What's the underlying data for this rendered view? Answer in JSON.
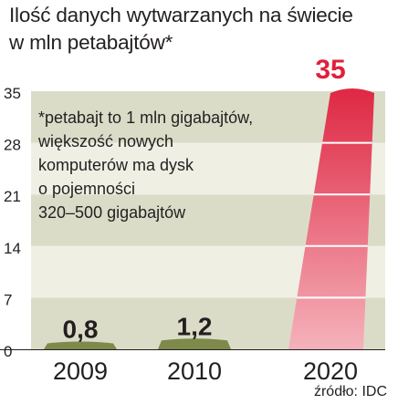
{
  "title_line1": "Ilość danych wytwarzanych na świecie",
  "title_line2": "w mln petabajtów*",
  "source": "źródło: IDC",
  "footnote": [
    "*petabajt to 1 mln gigabajtów,",
    "większość nowych",
    "komputerów ma dysk",
    " o pojemności",
    "320–500 gigabajtów"
  ],
  "colors": {
    "grid_band_light": "#efefe4",
    "grid_band_dark": "#dbdcc8",
    "bar_small": "#7d8a4c",
    "bar_2020_top": "#df2a45",
    "bar_2020_bottom": "#f5b2bb",
    "highlight_label": "#e0203a",
    "text": "#231f20"
  },
  "chart_data": {
    "type": "bar",
    "title": "Ilość danych wytwarzanych na świecie w mln petabajtów*",
    "xlabel": "",
    "ylabel": "",
    "categories": [
      "2009",
      "2010",
      "2020"
    ],
    "values": [
      0.8,
      1.2,
      35
    ],
    "value_labels": [
      "0,8",
      "1,2",
      "35"
    ],
    "ylim": [
      0,
      35
    ],
    "yticks": [
      0,
      7,
      14,
      21,
      28,
      35
    ],
    "grid": true,
    "highlight": "2020"
  }
}
